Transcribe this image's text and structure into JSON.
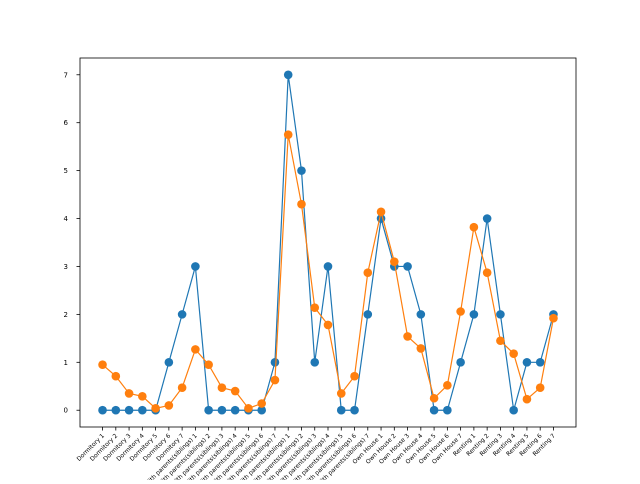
{
  "chart_data": {
    "type": "line",
    "title": "",
    "xlabel": "",
    "ylabel": "",
    "ylim": [
      -0.35,
      7.35
    ],
    "yticks": [
      0,
      1,
      2,
      3,
      4,
      5,
      6,
      7
    ],
    "grid": false,
    "legend": "none",
    "categories": [
      "Dormitory 1",
      "Dormitory 2",
      "Dormitory 3",
      "Dormitory 4",
      "Dormitory 5",
      "Dormitory 6",
      "Dormitory 7",
      "With parents(siblings) 1",
      "With parents(siblings) 2",
      "With parents(siblings) 3",
      "With parents(siblings) 4",
      "With parents(siblings) 5",
      "With parents(siblings) 6",
      "With parents(siblings) 7",
      "With parents(siblings) 1",
      "With parents(siblings) 2",
      "With parents(siblings) 3",
      "With parents(siblings) 4",
      "With parents(siblings) 5",
      "With parents(siblings) 6",
      "With parents(siblings) 7",
      "Own House 1",
      "Own House 2",
      "Own House 3",
      "Own House 4",
      "Own House 5",
      "Own House 6",
      "Own House 7",
      "Renting 1",
      "Renting 2",
      "Renting 3",
      "Renting 4",
      "Renting 5",
      "Renting 6",
      "Renting 7"
    ],
    "series": [
      {
        "color": "#1f77b4",
        "values": [
          0,
          0,
          0,
          0,
          0,
          1,
          2,
          3,
          0,
          0,
          0,
          0,
          0,
          1,
          7,
          5,
          1,
          3,
          0,
          0,
          2,
          4,
          3,
          3,
          2,
          0,
          0,
          1,
          2,
          4,
          2,
          0,
          1,
          1,
          2
        ]
      },
      {
        "color": "#ff7f0e",
        "values": [
          0.95,
          0.71,
          0.35,
          0.29,
          0.04,
          0.1,
          0.47,
          1.27,
          0.95,
          0.47,
          0.4,
          0.04,
          0.14,
          0.63,
          5.75,
          4.3,
          2.14,
          1.78,
          0.35,
          0.71,
          2.87,
          4.14,
          3.1,
          1.54,
          1.29,
          0.25,
          0.52,
          2.06,
          3.82,
          2.87,
          1.45,
          1.18,
          0.23,
          0.47,
          1.92
        ]
      }
    ]
  }
}
